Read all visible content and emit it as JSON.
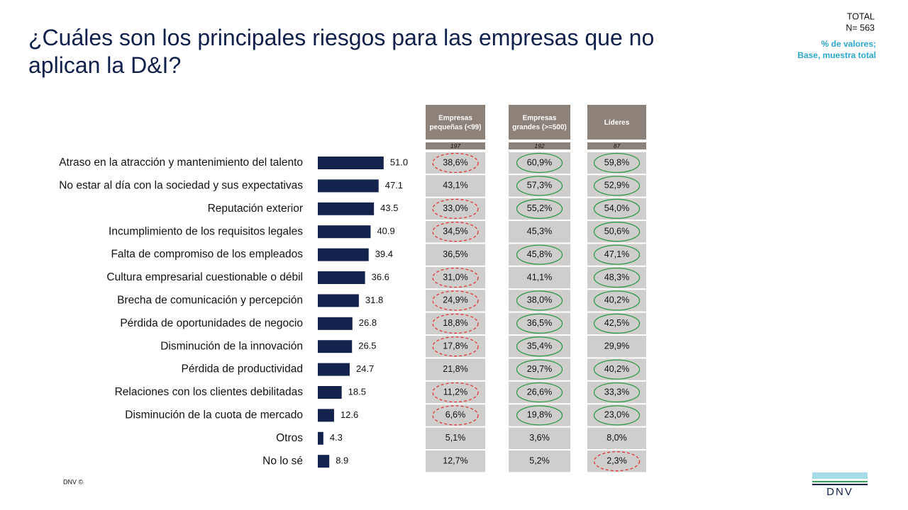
{
  "header": {
    "title": [
      "¿Cuáles son los principales riesgos para las empresas que no",
      "aplican la D&I?"
    ],
    "total": "TOTAL",
    "n": "N= 563",
    "note": [
      "% de valores;",
      "Base, muestra total"
    ]
  },
  "chart_data": {
    "type": "bar",
    "orientation": "horizontal",
    "color": "#14224e",
    "categories": [
      "Atraso en la atracción y mantenimiento del talento",
      "No estar al día con la sociedad y sus expectativas",
      "Reputación exterior",
      "Incumplimiento de los requisitos legales",
      "Falta de compromiso de los empleados",
      "Cultura empresarial cuestionable o débil",
      "Brecha de comunicación y percepción",
      "Pérdida de oportunidades de negocio",
      "Disminución de la innovación",
      "Pérdida de productividad",
      "Relaciones con los clientes debilitadas",
      "Disminución de la cuota de mercado",
      "Otros",
      "No lo sé"
    ],
    "values": [
      51.0,
      47.1,
      43.5,
      40.9,
      39.4,
      36.6,
      31.8,
      26.8,
      26.5,
      24.7,
      18.5,
      12.6,
      4.3,
      8.9
    ],
    "value_labels": [
      "51.0",
      "47.1",
      "43.5",
      "40.9",
      "39.4",
      "36.6",
      "31.8",
      "26.8",
      "26.5",
      "24.7",
      "18.5",
      "12.6",
      "4.3",
      "8.9"
    ]
  },
  "table": {
    "circle_styles": {
      "red": {
        "color": "#e0383a",
        "dashed": true
      },
      "green": {
        "color": "#2e9a4a",
        "dashed": false
      }
    },
    "columns": [
      {
        "header": "Empresas pequeñas (<99)",
        "base": "197",
        "cells": [
          "38,6%",
          "43,1%",
          "33,0%",
          "34,5%",
          "36,5%",
          "31,0%",
          "24,9%",
          "18,8%",
          "17,8%",
          "21,8%",
          "11,2%",
          "6,6%",
          "5,1%",
          "12,7%"
        ],
        "circles": [
          "red",
          null,
          "red",
          "red",
          null,
          "red",
          "red",
          "red",
          "red",
          null,
          "red",
          "red",
          null,
          null
        ]
      },
      {
        "header": "Empresas grandes (>=500)",
        "base": "192",
        "cells": [
          "60,9%",
          "57,3%",
          "55,2%",
          "45,3%",
          "45,8%",
          "41,1%",
          "38,0%",
          "36,5%",
          "35,4%",
          "29,7%",
          "26,6%",
          "19,8%",
          "3,6%",
          "5,2%"
        ],
        "circles": [
          "green",
          "green",
          "green",
          null,
          "green",
          null,
          "green",
          "green",
          "green",
          "green",
          "green",
          "green",
          null,
          null
        ]
      },
      {
        "header": "Líderes",
        "base": "87",
        "cells": [
          "59,8%",
          "52,9%",
          "54,0%",
          "50,6%",
          "47,1%",
          "48,3%",
          "40,2%",
          "42,5%",
          "29,9%",
          "40,2%",
          "33,3%",
          "23,0%",
          "8,0%",
          "2,3%"
        ],
        "circles": [
          "green",
          "green",
          "green",
          "green",
          "green",
          "green",
          "green",
          "green",
          null,
          "green",
          "green",
          "green",
          null,
          "red"
        ]
      }
    ]
  },
  "footer": {
    "copyright": "DNV ©",
    "logo": "DNV"
  }
}
